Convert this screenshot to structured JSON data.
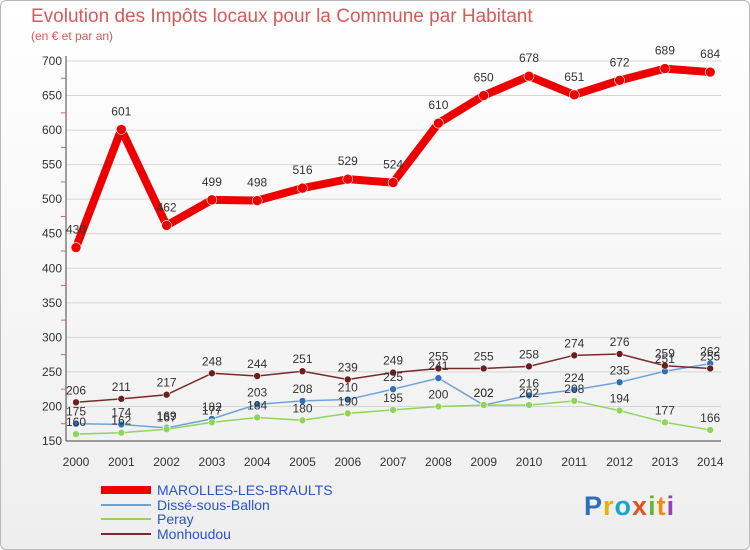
{
  "chart_data": {
    "type": "line",
    "title": "Evolution des Impôts locaux pour la Commune par Habitant",
    "subtitle": "(en € et par an)",
    "xlabel": "",
    "ylabel": "",
    "ylim": [
      150,
      700
    ],
    "yticks": [
      150,
      200,
      250,
      300,
      350,
      400,
      450,
      500,
      550,
      600,
      650,
      700
    ],
    "categories": [
      "2000",
      "2001",
      "2002",
      "2003",
      "2004",
      "2005",
      "2006",
      "2007",
      "2008",
      "2009",
      "2010",
      "2011",
      "2012",
      "2013",
      "2014"
    ],
    "series": [
      {
        "name": "MAROLLES-LES-BRAULTS",
        "color": "#ee0000",
        "values": [
          430,
          601,
          462,
          499,
          498,
          516,
          529,
          524,
          610,
          650,
          678,
          651,
          672,
          689,
          684
        ]
      },
      {
        "name": "Dissé-sous-Ballon",
        "color": "#6fa3d8",
        "values": [
          175,
          174,
          169,
          182,
          203,
          208,
          210,
          225,
          241,
          202,
          216,
          224,
          235,
          251,
          262
        ]
      },
      {
        "name": "Peray",
        "color": "#8ed65a",
        "values": [
          160,
          162,
          167,
          177,
          184,
          180,
          190,
          195,
          200,
          202,
          202,
          208,
          194,
          177,
          166
        ]
      },
      {
        "name": "Monhoudou",
        "color": "#7a2a2a",
        "values": [
          206,
          211,
          217,
          248,
          244,
          251,
          239,
          249,
          255,
          255,
          258,
          274,
          276,
          259,
          255
        ]
      }
    ]
  },
  "logo": {
    "text": "Proxiti",
    "colors": [
      "#2b6fc1",
      "#e8b300",
      "#1aa6c9",
      "#e5531c",
      "#69b53a",
      "#ef8a14",
      "#9c3fb2"
    ]
  }
}
